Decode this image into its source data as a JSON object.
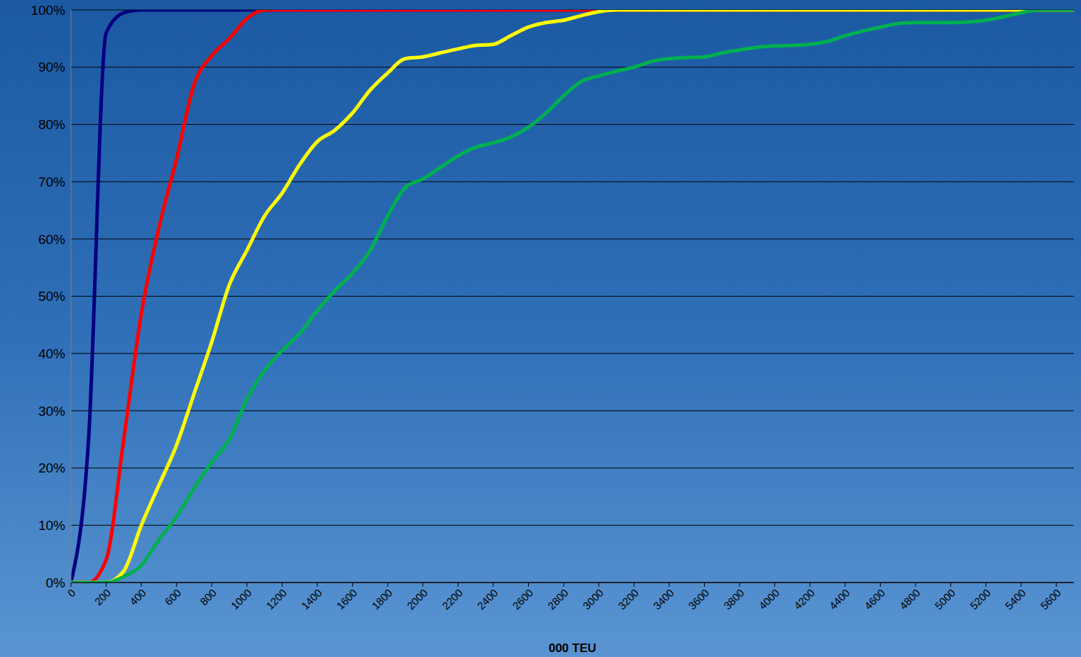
{
  "chart_data": {
    "type": "line",
    "xlabel": "000 TEU",
    "x": [
      0,
      100,
      200,
      300,
      400,
      500,
      600,
      700,
      800,
      900,
      1000,
      1100,
      1200,
      1300,
      1400,
      1500,
      1600,
      1700,
      1800,
      1900,
      2000,
      2100,
      2200,
      2300,
      2400,
      2500,
      2600,
      2700,
      2800,
      2900,
      3000,
      3100,
      3200,
      3300,
      3400,
      3500,
      3600,
      3700,
      3800,
      3900,
      4000,
      4100,
      4200,
      4300,
      4400,
      4500,
      4600,
      4700,
      4800,
      4900,
      5000,
      5100,
      5200,
      5300,
      5400,
      5500,
      5600,
      5700
    ],
    "series": [
      {
        "color": "#000080",
        "values": [
          0,
          25,
          96,
          99.5,
          100,
          100,
          100,
          100,
          100,
          100,
          100,
          100,
          100,
          100,
          100,
          100,
          100,
          100,
          100,
          100,
          100,
          100,
          100,
          100,
          100,
          100,
          100,
          100,
          100,
          100,
          100,
          100,
          100,
          100,
          100,
          100,
          100,
          100,
          100,
          100,
          100,
          100,
          100,
          100,
          100,
          100,
          100,
          100,
          100,
          100,
          100,
          100,
          100,
          100,
          100,
          100,
          100,
          100
        ]
      },
      {
        "color": "#ff0000",
        "values": [
          0,
          0,
          4,
          25,
          47,
          62,
          74,
          87,
          92,
          95,
          98.5,
          100,
          100,
          100,
          100,
          100,
          100,
          100,
          100,
          100,
          100,
          100,
          100,
          100,
          100,
          100,
          100,
          100,
          100,
          100,
          100,
          100,
          100,
          100,
          100,
          100,
          100,
          100,
          100,
          100,
          100,
          100,
          100,
          100,
          100,
          100,
          100,
          100,
          100,
          100,
          100,
          100,
          100,
          100,
          100,
          100,
          100,
          100
        ]
      },
      {
        "color": "#ffff00",
        "values": [
          0,
          0,
          0,
          2,
          10,
          17,
          24,
          33,
          42,
          52,
          58,
          64,
          68,
          73,
          77,
          79,
          82,
          86,
          89,
          91.5,
          91.8,
          92.5,
          93.2,
          93.8,
          94,
          95.5,
          97,
          97.8,
          98.2,
          99,
          99.7,
          100,
          100,
          100,
          100,
          100,
          100,
          100,
          100,
          100,
          100,
          100,
          100,
          100,
          100,
          100,
          100,
          100,
          100,
          100,
          100,
          100,
          100,
          100,
          100,
          100,
          100,
          100
        ]
      },
      {
        "color": "#00b050",
        "values": [
          0,
          0,
          0,
          1,
          3,
          7.5,
          11.5,
          16.5,
          21,
          25,
          32,
          37,
          40.5,
          43.5,
          47.5,
          51,
          54,
          58,
          64,
          69,
          70.5,
          72.5,
          74.5,
          76,
          76.8,
          77.8,
          79.5,
          82,
          85,
          87.5,
          88.5,
          89.3,
          90,
          91,
          91.5,
          91.7,
          91.8,
          92.5,
          93,
          93.5,
          93.7,
          93.8,
          94,
          94.5,
          95.5,
          96.3,
          97,
          97.6,
          97.8,
          97.8,
          97.8,
          97.9,
          98.2,
          98.8,
          99.5,
          100,
          100,
          100
        ]
      }
    ],
    "xlim": [
      0,
      5700
    ],
    "xticks": [
      0,
      200,
      400,
      600,
      800,
      1000,
      1200,
      1400,
      1600,
      1800,
      2000,
      2200,
      2400,
      2600,
      2800,
      3000,
      3200,
      3400,
      3600,
      3800,
      4000,
      4200,
      4400,
      4600,
      4800,
      5000,
      5200,
      5400,
      5600
    ],
    "ylim": [
      0,
      100
    ],
    "yticks": [
      {
        "value": 0,
        "label": "0%"
      },
      {
        "value": 10,
        "label": "10%"
      },
      {
        "value": 20,
        "label": "20%"
      },
      {
        "value": 30,
        "label": "30%"
      },
      {
        "value": 40,
        "label": "40%"
      },
      {
        "value": 50,
        "label": "50%"
      },
      {
        "value": 60,
        "label": "60%"
      },
      {
        "value": 70,
        "label": "70%"
      },
      {
        "value": 80,
        "label": "80%"
      },
      {
        "value": 90,
        "label": "90%"
      },
      {
        "value": 100,
        "label": "100%"
      }
    ],
    "grid": true
  }
}
